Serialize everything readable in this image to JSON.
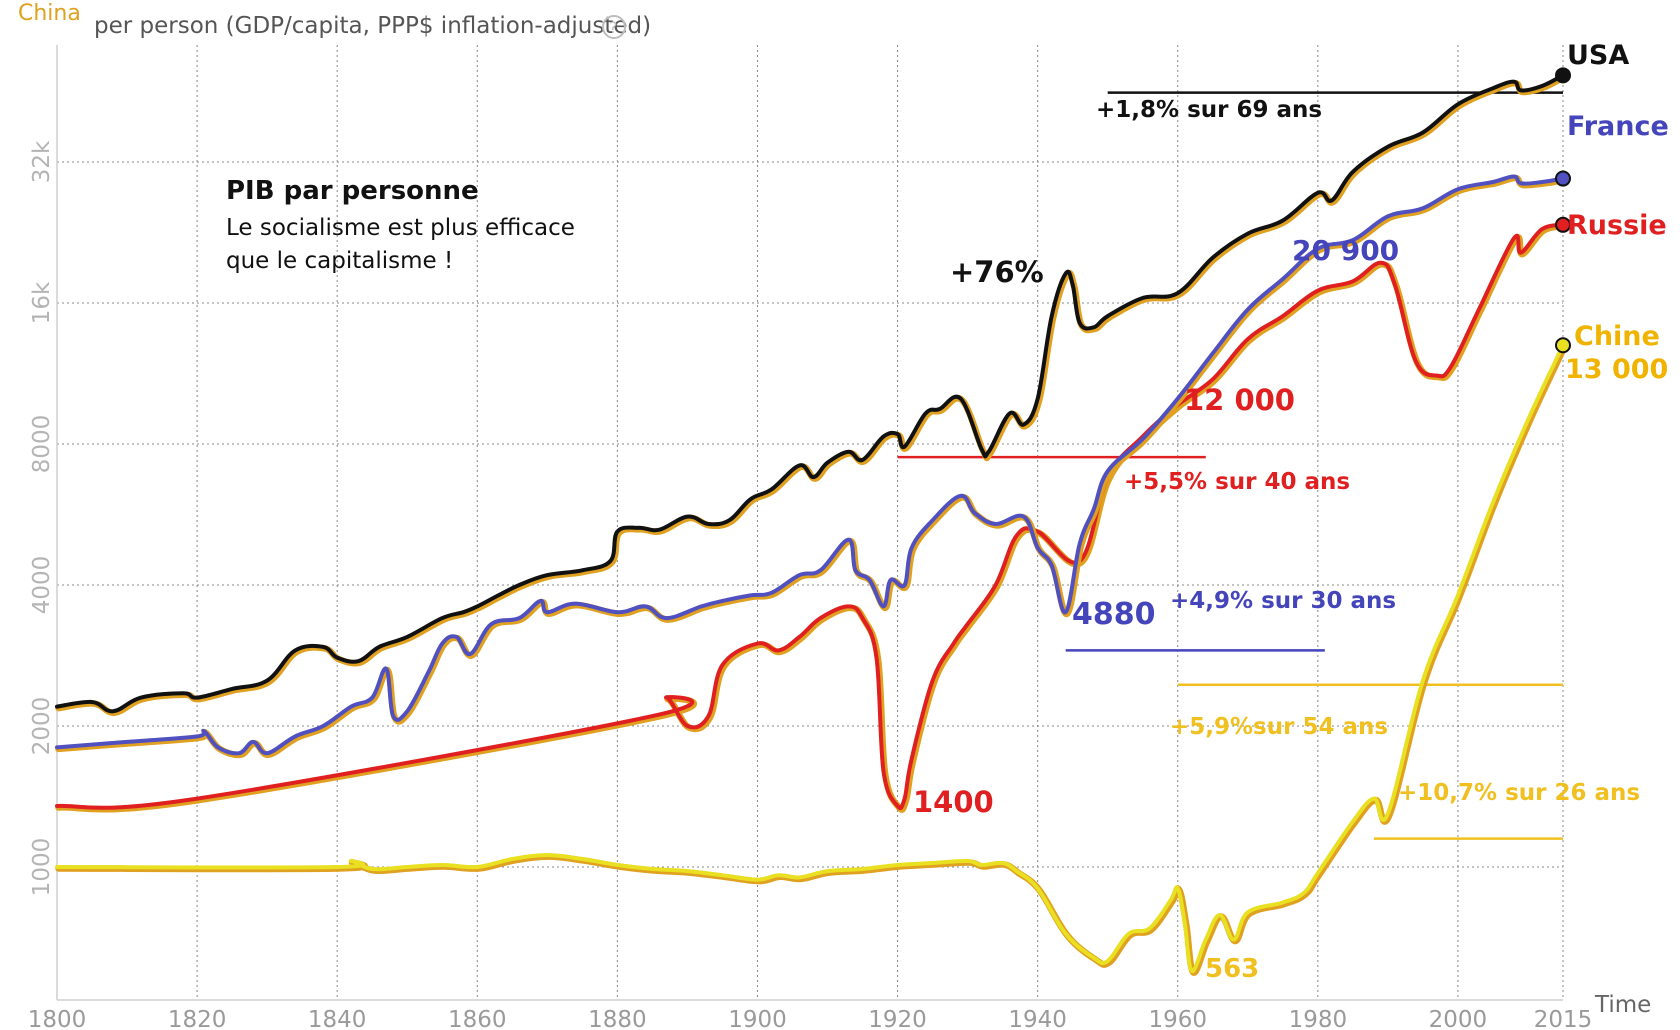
{
  "indicator_selector": "China",
  "axis_title": "per person (GDP/capita, PPP$ inflation-adjusted)",
  "help_glyph": "?",
  "time_label": "Time",
  "note": {
    "title": "PIB par personne",
    "line1": "Le socialisme est plus efficace",
    "line2": "que le capitalisme !"
  },
  "colors": {
    "usa": "#111111",
    "france": "#5050c0",
    "russia": "#e02020",
    "china": "#e8e020",
    "china_text": "#f0b400",
    "shadow": "#e0a020",
    "grid": "#888888"
  },
  "chart_data": {
    "type": "line",
    "title": "",
    "xlabel": "Time",
    "ylabel": "per person (GDP/capita, PPP$ inflation-adjusted)",
    "yscale": "log",
    "xlim": [
      1800,
      2015
    ],
    "x_ticks": [
      "1800",
      "1820",
      "1840",
      "1860",
      "1880",
      "1900",
      "1920",
      "1940",
      "1960",
      "1980",
      "2000",
      "2015"
    ],
    "y_ticks": [
      {
        "value": 1000,
        "label": "1000"
      },
      {
        "value": 2000,
        "label": "2000"
      },
      {
        "value": 4000,
        "label": "4000"
      },
      {
        "value": 8000,
        "label": "8000"
      },
      {
        "value": 16000,
        "label": "16k"
      },
      {
        "value": 32000,
        "label": "32k"
      }
    ],
    "series": [
      {
        "name": "USA",
        "color": "#111111",
        "points": [
          [
            1800,
            2200
          ],
          [
            1805,
            2250
          ],
          [
            1808,
            2150
          ],
          [
            1812,
            2300
          ],
          [
            1818,
            2350
          ],
          [
            1820,
            2300
          ],
          [
            1825,
            2400
          ],
          [
            1830,
            2500
          ],
          [
            1834,
            2900
          ],
          [
            1838,
            2950
          ],
          [
            1840,
            2800
          ],
          [
            1843,
            2750
          ],
          [
            1846,
            2950
          ],
          [
            1850,
            3100
          ],
          [
            1855,
            3400
          ],
          [
            1858,
            3500
          ],
          [
            1860,
            3600
          ],
          [
            1863,
            3800
          ],
          [
            1866,
            4000
          ],
          [
            1870,
            4200
          ],
          [
            1875,
            4300
          ],
          [
            1879,
            4500
          ],
          [
            1880,
            5200
          ],
          [
            1883,
            5300
          ],
          [
            1886,
            5250
          ],
          [
            1890,
            5600
          ],
          [
            1893,
            5400
          ],
          [
            1896,
            5500
          ],
          [
            1899,
            6100
          ],
          [
            1902,
            6400
          ],
          [
            1906,
            7200
          ],
          [
            1908,
            6800
          ],
          [
            1910,
            7300
          ],
          [
            1913,
            7700
          ],
          [
            1915,
            7400
          ],
          [
            1918,
            8300
          ],
          [
            1920,
            8400
          ],
          [
            1921,
            7900
          ],
          [
            1924,
            9300
          ],
          [
            1926,
            9500
          ],
          [
            1929,
            10000
          ],
          [
            1932,
            7800
          ],
          [
            1933,
            7700
          ],
          [
            1936,
            9300
          ],
          [
            1938,
            8800
          ],
          [
            1940,
            10000
          ],
          [
            1942,
            15000
          ],
          [
            1944,
            18500
          ],
          [
            1945,
            17500
          ],
          [
            1946,
            14500
          ],
          [
            1948,
            14200
          ],
          [
            1950,
            15000
          ],
          [
            1955,
            16400
          ],
          [
            1960,
            16800
          ],
          [
            1965,
            20000
          ],
          [
            1970,
            22500
          ],
          [
            1975,
            24000
          ],
          [
            1980,
            27500
          ],
          [
            1982,
            26500
          ],
          [
            1985,
            30500
          ],
          [
            1990,
            34500
          ],
          [
            1995,
            37000
          ],
          [
            2000,
            42500
          ],
          [
            2005,
            46000
          ],
          [
            2008,
            47500
          ],
          [
            2009,
            45500
          ],
          [
            2012,
            46500
          ],
          [
            2015,
            49000
          ]
        ]
      },
      {
        "name": "France",
        "color": "#5050c0",
        "points": [
          [
            1800,
            1800
          ],
          [
            1810,
            1850
          ],
          [
            1820,
            1900
          ],
          [
            1821,
            1950
          ],
          [
            1823,
            1800
          ],
          [
            1826,
            1750
          ],
          [
            1828,
            1850
          ],
          [
            1830,
            1750
          ],
          [
            1834,
            1900
          ],
          [
            1838,
            2000
          ],
          [
            1842,
            2200
          ],
          [
            1845,
            2300
          ],
          [
            1847,
            2650
          ],
          [
            1848,
            2100
          ],
          [
            1850,
            2150
          ],
          [
            1853,
            2600
          ],
          [
            1855,
            3000
          ],
          [
            1857,
            3100
          ],
          [
            1859,
            2850
          ],
          [
            1862,
            3300
          ],
          [
            1866,
            3400
          ],
          [
            1869,
            3700
          ],
          [
            1870,
            3500
          ],
          [
            1874,
            3650
          ],
          [
            1880,
            3500
          ],
          [
            1884,
            3600
          ],
          [
            1887,
            3400
          ],
          [
            1892,
            3600
          ],
          [
            1895,
            3700
          ],
          [
            1899,
            3800
          ],
          [
            1902,
            3850
          ],
          [
            1906,
            4200
          ],
          [
            1909,
            4300
          ],
          [
            1913,
            5000
          ],
          [
            1914,
            4300
          ],
          [
            1916,
            4100
          ],
          [
            1918,
            3600
          ],
          [
            1919,
            4100
          ],
          [
            1921,
            4000
          ],
          [
            1922,
            4800
          ],
          [
            1925,
            5500
          ],
          [
            1929,
            6200
          ],
          [
            1931,
            5700
          ],
          [
            1934,
            5400
          ],
          [
            1938,
            5600
          ],
          [
            1940,
            4800
          ],
          [
            1942,
            4400
          ],
          [
            1944,
            3500
          ],
          [
            1946,
            4900
          ],
          [
            1948,
            5800
          ],
          [
            1950,
            7000
          ],
          [
            1955,
            8200
          ],
          [
            1960,
            10000
          ],
          [
            1965,
            12500
          ],
          [
            1970,
            15500
          ],
          [
            1975,
            18000
          ],
          [
            1980,
            20900
          ],
          [
            1985,
            21800
          ],
          [
            1990,
            24500
          ],
          [
            1995,
            25500
          ],
          [
            2000,
            28000
          ],
          [
            2005,
            29000
          ],
          [
            2008,
            29800
          ],
          [
            2009,
            28800
          ],
          [
            2012,
            29000
          ],
          [
            2015,
            29500
          ]
        ]
      },
      {
        "name": "Russie",
        "color": "#e02020",
        "points": [
          [
            1800,
            1350
          ],
          [
            1820,
            1400
          ],
          [
            1885,
            2100
          ],
          [
            1887,
            2300
          ],
          [
            1890,
            2000
          ],
          [
            1893,
            2100
          ],
          [
            1895,
            2700
          ],
          [
            1900,
            3000
          ],
          [
            1903,
            2900
          ],
          [
            1906,
            3100
          ],
          [
            1909,
            3400
          ],
          [
            1913,
            3600
          ],
          [
            1915,
            3400
          ],
          [
            1917,
            2800
          ],
          [
            1918,
            1600
          ],
          [
            1920,
            1350
          ],
          [
            1921,
            1400
          ],
          [
            1922,
            1700
          ],
          [
            1925,
            2500
          ],
          [
            1928,
            3000
          ],
          [
            1930,
            3300
          ],
          [
            1934,
            4000
          ],
          [
            1937,
            5100
          ],
          [
            1940,
            5200
          ],
          [
            1946,
            4500
          ],
          [
            1950,
            6800
          ],
          [
            1955,
            8300
          ],
          [
            1960,
            9700
          ],
          [
            1965,
            11000
          ],
          [
            1970,
            13400
          ],
          [
            1975,
            15000
          ],
          [
            1980,
            17000
          ],
          [
            1985,
            17800
          ],
          [
            1989,
            19500
          ],
          [
            1991,
            17500
          ],
          [
            1994,
            12000
          ],
          [
            1997,
            11200
          ],
          [
            1999,
            11700
          ],
          [
            2003,
            15500
          ],
          [
            2008,
            22000
          ],
          [
            2009,
            20500
          ],
          [
            2012,
            23000
          ],
          [
            2015,
            23500
          ]
        ]
      },
      {
        "name": "Chine",
        "color": "#e8e020",
        "points": [
          [
            1800,
            1000
          ],
          [
            1840,
            1000
          ],
          [
            1842,
            1030
          ],
          [
            1845,
            990
          ],
          [
            1850,
            1000
          ],
          [
            1855,
            1010
          ],
          [
            1860,
            1000
          ],
          [
            1865,
            1040
          ],
          [
            1870,
            1060
          ],
          [
            1875,
            1040
          ],
          [
            1880,
            1010
          ],
          [
            1885,
            990
          ],
          [
            1890,
            980
          ],
          [
            1895,
            960
          ],
          [
            1900,
            940
          ],
          [
            1903,
            960
          ],
          [
            1906,
            950
          ],
          [
            1910,
            980
          ],
          [
            1915,
            990
          ],
          [
            1920,
            1010
          ],
          [
            1925,
            1020
          ],
          [
            1930,
            1030
          ],
          [
            1932,
            1010
          ],
          [
            1935,
            1020
          ],
          [
            1937,
            980
          ],
          [
            1940,
            900
          ],
          [
            1944,
            720
          ],
          [
            1948,
            640
          ],
          [
            1950,
            630
          ],
          [
            1953,
            720
          ],
          [
            1956,
            740
          ],
          [
            1959,
            850
          ],
          [
            1960,
            900
          ],
          [
            1961,
            760
          ],
          [
            1962,
            600
          ],
          [
            1964,
            700
          ],
          [
            1966,
            790
          ],
          [
            1968,
            700
          ],
          [
            1970,
            800
          ],
          [
            1975,
            840
          ],
          [
            1978,
            880
          ],
          [
            1980,
            970
          ],
          [
            1985,
            1250
          ],
          [
            1988,
            1400
          ],
          [
            1990,
            1300
          ],
          [
            1995,
            2500
          ],
          [
            2000,
            3800
          ],
          [
            2005,
            6000
          ],
          [
            2010,
            9000
          ],
          [
            2015,
            13000
          ]
        ]
      }
    ],
    "end_labels": [
      "USA",
      "France",
      "Russie",
      "Chine"
    ],
    "annotations": {
      "usa_spike": "+76%",
      "usa_rate": "+1,8% sur 69 ans",
      "france_low": "4880",
      "france_high": "20 900",
      "france_rate": "+4,9% sur 30 ans",
      "russia_low": "1400",
      "russia_mid": "12 000",
      "russia_rate": "+5,5% sur 40 ans",
      "china_low": "563",
      "china_end": "13 000",
      "china_rate_long": "+5,9%sur 54 ans",
      "china_rate_recent": "+10,7% sur 26 ans"
    },
    "reference_lines": [
      {
        "name": "usa-rate-line",
        "color": "#111111",
        "x1": 1950,
        "x2": 2015,
        "y": 45000
      },
      {
        "name": "russia-rate-line",
        "color": "#e02020",
        "x1": 1920,
        "x2": 1964,
        "y": 7500
      },
      {
        "name": "france-rate-line",
        "color": "#4444bb",
        "x1": 1944,
        "x2": 1981,
        "y": 2900
      },
      {
        "name": "china-long-rate-line",
        "color": "#f0c020",
        "x1": 1960,
        "x2": 2015,
        "y": 2450
      },
      {
        "name": "china-recent-rate-line",
        "color": "#f0c020",
        "x1": 1988,
        "x2": 2015,
        "y": 1150
      }
    ],
    "grid": true,
    "legend": "end-of-line labels"
  }
}
